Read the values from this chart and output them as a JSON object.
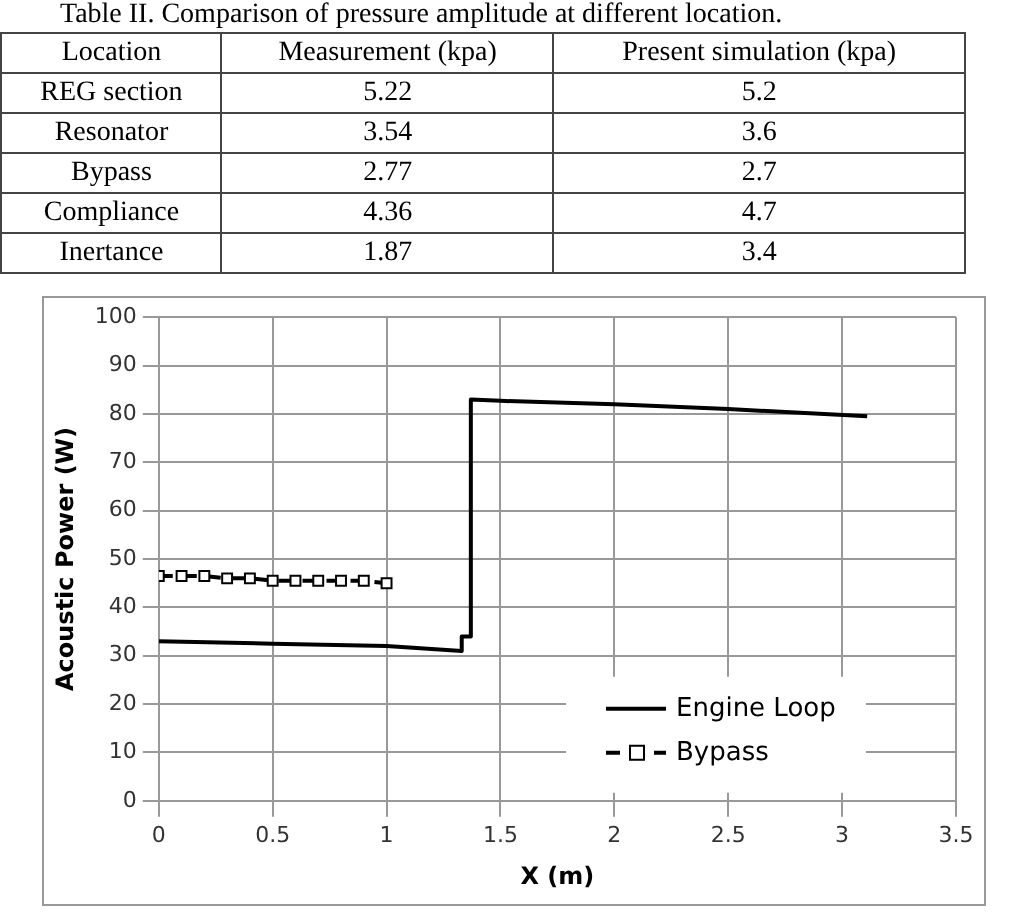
{
  "chart_data": [
    {
      "type": "other",
      "title": "Table II. Comparison of pressure amplitude at different location.",
      "xlabel": "Location",
      "categories": [
        "REG section",
        "Resonator",
        "Bypass",
        "Compliance",
        "Inertance"
      ],
      "data_labels": true,
      "series": [
        {
          "name": "Measurement (kpa)",
          "values": [
            5.22,
            3.54,
            2.77,
            4.36,
            1.87
          ]
        },
        {
          "name": "Present simulation  (kpa)",
          "values": [
            5.2,
            3.6,
            2.7,
            4.7,
            3.4
          ]
        }
      ]
    },
    {
      "type": "line",
      "xlabel": "X (m)",
      "ylabel": "Acoustic Power (W)",
      "xlim": [
        0,
        3.5
      ],
      "xticks": [
        0,
        0.5,
        1,
        1.5,
        2,
        2.5,
        3,
        3.5
      ],
      "ylim": [
        0,
        100
      ],
      "yticks": [
        0,
        10,
        20,
        30,
        40,
        50,
        60,
        70,
        80,
        90,
        100
      ],
      "grid": true,
      "legend": "bottom right",
      "series": [
        {
          "name": "Engine Loop",
          "color": "#000000",
          "marker": "none",
          "line_style": "solid",
          "x": [
            0,
            0.5,
            1,
            1.33,
            1.33,
            1.37,
            1.37,
            1.5,
            2,
            2.5,
            3.11
          ],
          "values": [
            33,
            32.5,
            32,
            31,
            34,
            34,
            83,
            82.7,
            82,
            81,
            79.5
          ]
        },
        {
          "name": "Bypass",
          "color": "#000000",
          "marker": "square",
          "line_style": "dashed",
          "x": [
            0,
            0.1,
            0.2,
            0.3,
            0.4,
            0.5,
            0.6,
            0.7,
            0.8,
            0.9,
            1
          ],
          "values": [
            46.5,
            46.5,
            46.5,
            46,
            46,
            45.5,
            45.5,
            45.5,
            45.5,
            45.5,
            45
          ]
        }
      ]
    }
  ]
}
